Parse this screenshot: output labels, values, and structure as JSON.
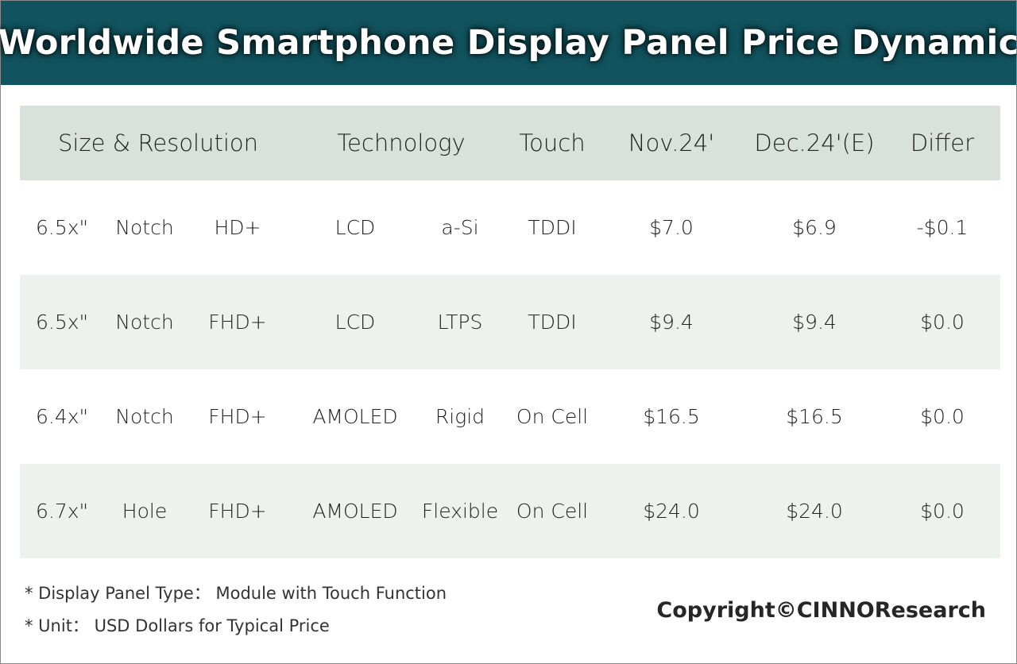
{
  "title": "Worldwide Smartphone Display Panel Price Dynamic",
  "chart_data": {
    "type": "table",
    "title": "Worldwide Smartphone Display Panel Price Dynamic",
    "columns": [
      "Size & Resolution",
      "Technology",
      "Touch",
      "Nov.24'",
      "Dec.24'(E)",
      "Differ"
    ],
    "rows": [
      {
        "size": "6.5x\"",
        "screen": "Notch",
        "resolution": "HD+",
        "display": "LCD",
        "backplane": "a-Si",
        "touch": "TDDI",
        "nov": "$7.0",
        "dec": "$6.9",
        "differ": "-$0.1"
      },
      {
        "size": "6.5x\"",
        "screen": "Notch",
        "resolution": "FHD+",
        "display": "LCD",
        "backplane": "LTPS",
        "touch": "TDDI",
        "nov": "$9.4",
        "dec": "$9.4",
        "differ": "$0.0"
      },
      {
        "size": "6.4x\"",
        "screen": "Notch",
        "resolution": "FHD+",
        "display": "AMOLED",
        "backplane": "Rigid",
        "touch": "On Cell",
        "nov": "$16.5",
        "dec": "$16.5",
        "differ": "$0.0"
      },
      {
        "size": "6.7x\"",
        "screen": "Hole",
        "resolution": "FHD+",
        "display": "AMOLED",
        "backplane": "Flexible",
        "touch": "On Cell",
        "nov": "$24.0",
        "dec": "$24.0",
        "differ": "$0.0"
      }
    ],
    "values_usd": {
      "nov": [
        7.0,
        9.4,
        16.5,
        24.0
      ],
      "dec": [
        6.9,
        9.4,
        16.5,
        24.0
      ],
      "differ": [
        -0.1,
        0.0,
        0.0,
        0.0
      ]
    }
  },
  "footnotes": [
    "* Display Panel Type： Module with Touch Function",
    "* Unit： USD Dollars for Typical Price"
  ],
  "copyright": "Copyright©CINNOResearch",
  "colors": {
    "title_bg": "#11535e",
    "header_bg": "#d8e2da",
    "shaded_row_bg": "#edf2ee"
  }
}
